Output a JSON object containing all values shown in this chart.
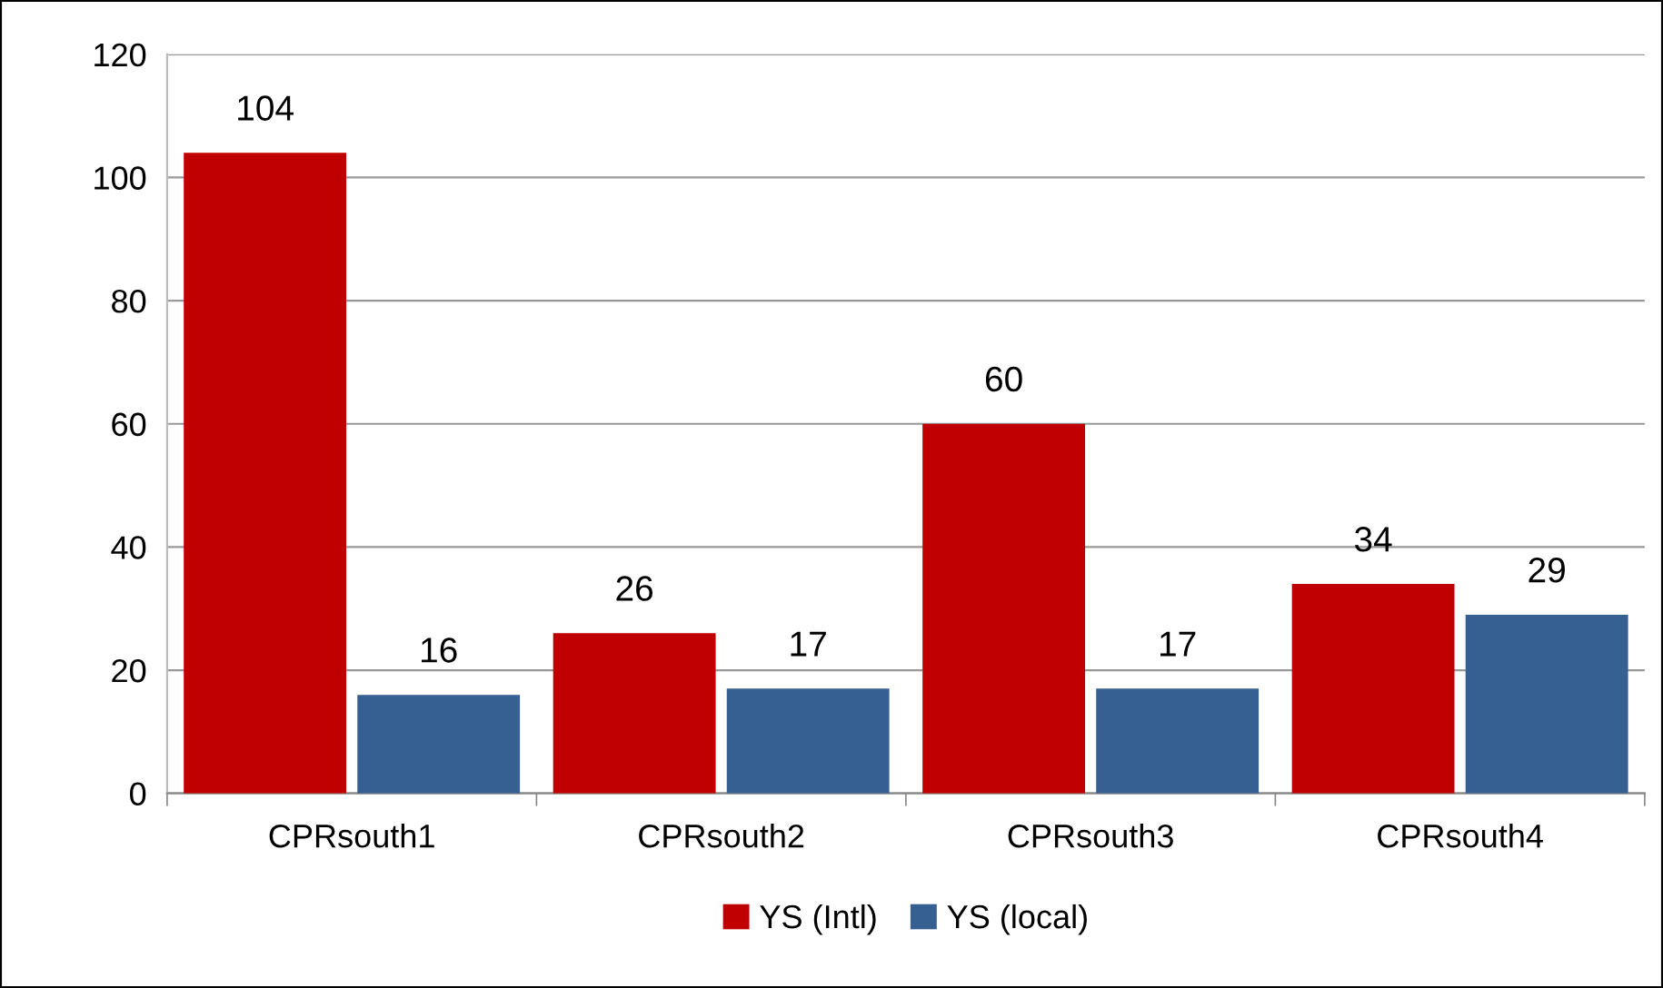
{
  "chart_data": {
    "type": "bar",
    "categories": [
      "CPRsouth1",
      "CPRsouth2",
      "CPRsouth3",
      "CPRsouth4"
    ],
    "series": [
      {
        "name": "YS (Intl)",
        "color": "#c00000",
        "values": [
          104,
          26,
          60,
          34
        ]
      },
      {
        "name": "YS (local)",
        "color": "#376092",
        "values": [
          16,
          17,
          17,
          29
        ]
      }
    ],
    "ylim": [
      0,
      120
    ],
    "yticks": [
      0,
      20,
      40,
      60,
      80,
      100,
      120
    ],
    "grid": "y",
    "legend": "bottom",
    "data_labels": true
  }
}
